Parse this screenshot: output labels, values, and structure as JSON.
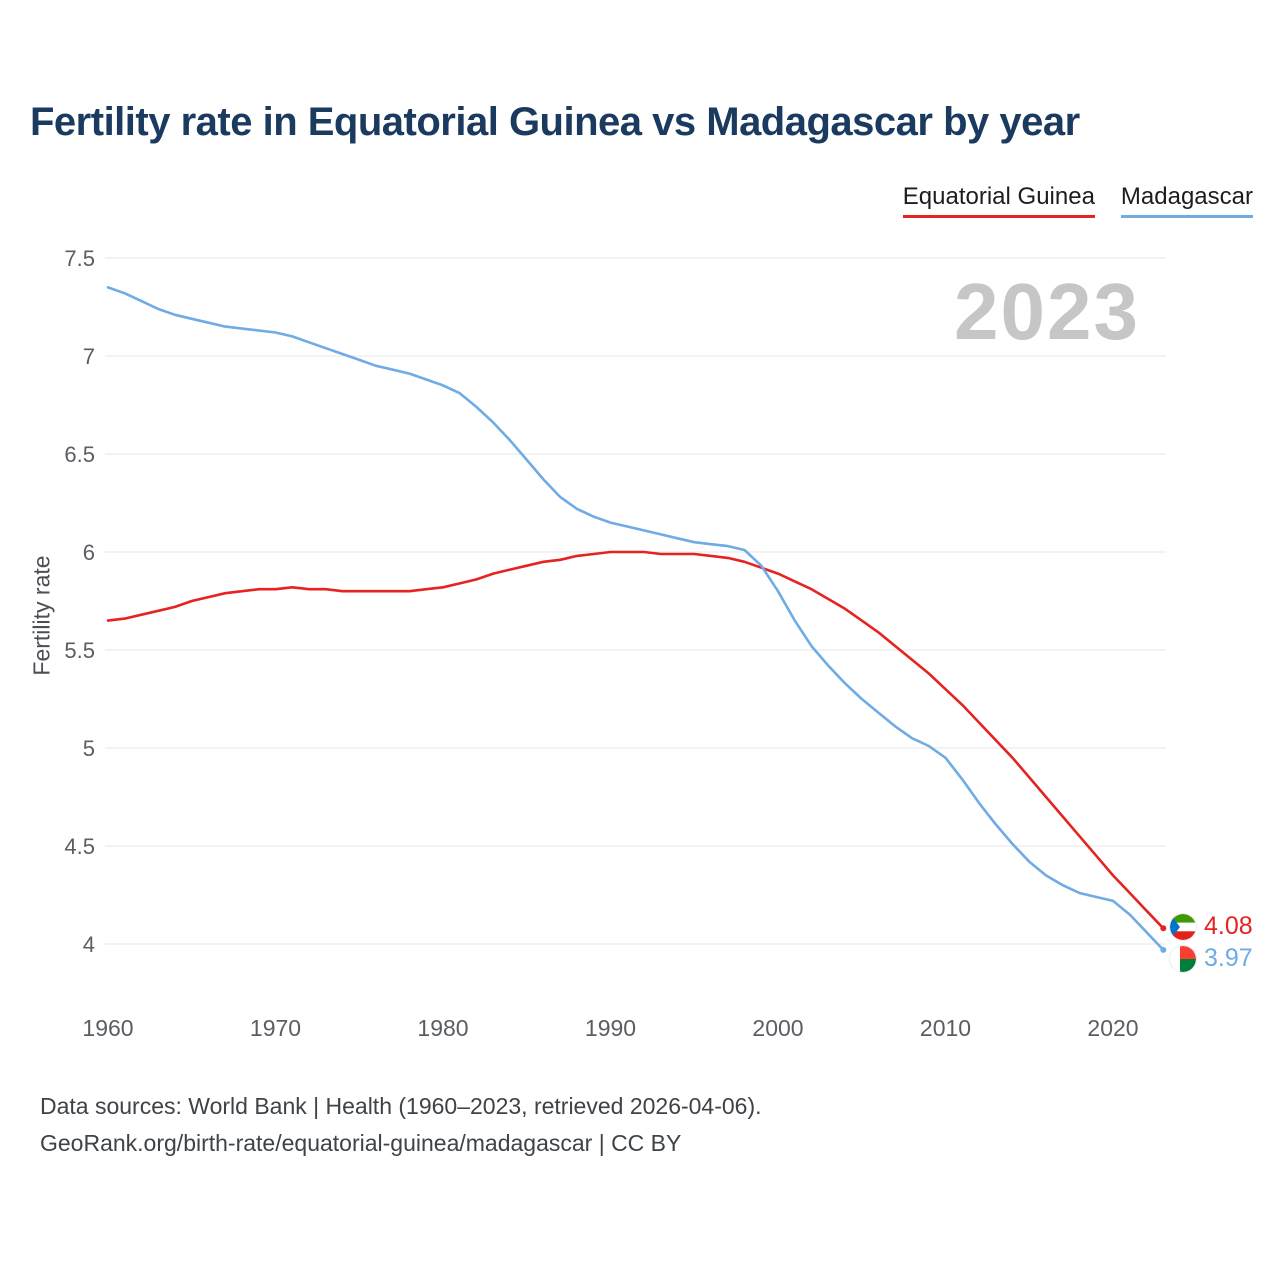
{
  "title": "Fertility rate in Equatorial Guinea vs Madagascar by year",
  "watermark": "2023",
  "ylabel": "Fertility rate",
  "legend": [
    {
      "label": "Equatorial Guinea",
      "color": "#e52320"
    },
    {
      "label": "Madagascar",
      "color": "#6fabe4"
    }
  ],
  "end_labels": [
    {
      "value": "4.08",
      "color": "#e52320",
      "flag": "equatorial-guinea-flag-icon"
    },
    {
      "value": "3.97",
      "color": "#6fabe4",
      "flag": "madagascar-flag-icon"
    }
  ],
  "footer": {
    "line1": "Data sources: World Bank | Health (1960–2023, retrieved 2026-04-06).",
    "line2": "GeoRank.org/birth-rate/equatorial-guinea/madagascar | CC BY"
  },
  "chart_data": {
    "type": "line",
    "title": "Fertility rate in Equatorial Guinea vs Madagascar by year",
    "xlabel": "",
    "ylabel": "Fertility rate",
    "grid": "horizontal",
    "legend_position": "top-right",
    "x_range": [
      1960,
      2023
    ],
    "ylim": [
      3.8,
      7.6
    ],
    "xticks": [
      1960,
      1970,
      1980,
      1990,
      2000,
      2010,
      2020
    ],
    "yticks": [
      7.5,
      7,
      6.5,
      6,
      5.5,
      5,
      4.5,
      4
    ],
    "x": [
      1960,
      1961,
      1962,
      1963,
      1964,
      1965,
      1966,
      1967,
      1968,
      1969,
      1970,
      1971,
      1972,
      1973,
      1974,
      1975,
      1976,
      1977,
      1978,
      1979,
      1980,
      1981,
      1982,
      1983,
      1984,
      1985,
      1986,
      1987,
      1988,
      1989,
      1990,
      1991,
      1992,
      1993,
      1994,
      1995,
      1996,
      1997,
      1998,
      1999,
      2000,
      2001,
      2002,
      2003,
      2004,
      2005,
      2006,
      2007,
      2008,
      2009,
      2010,
      2011,
      2012,
      2013,
      2014,
      2015,
      2016,
      2017,
      2018,
      2019,
      2020,
      2021,
      2022,
      2023
    ],
    "series": [
      {
        "name": "Equatorial Guinea",
        "color": "#e52320",
        "values": [
          5.65,
          5.66,
          5.68,
          5.7,
          5.72,
          5.75,
          5.77,
          5.79,
          5.8,
          5.81,
          5.81,
          5.82,
          5.81,
          5.81,
          5.8,
          5.8,
          5.8,
          5.8,
          5.8,
          5.81,
          5.82,
          5.84,
          5.86,
          5.89,
          5.91,
          5.93,
          5.95,
          5.96,
          5.98,
          5.99,
          6.0,
          6.0,
          6.0,
          5.99,
          5.99,
          5.99,
          5.98,
          5.97,
          5.95,
          5.92,
          5.89,
          5.85,
          5.81,
          5.76,
          5.71,
          5.65,
          5.59,
          5.52,
          5.45,
          5.38,
          5.3,
          5.22,
          5.13,
          5.04,
          4.95,
          4.85,
          4.75,
          4.65,
          4.55,
          4.45,
          4.35,
          4.26,
          4.17,
          4.08
        ]
      },
      {
        "name": "Madagascar",
        "color": "#6fabe4",
        "values": [
          7.35,
          7.32,
          7.28,
          7.24,
          7.21,
          7.19,
          7.17,
          7.15,
          7.14,
          7.13,
          7.12,
          7.1,
          7.07,
          7.04,
          7.01,
          6.98,
          6.95,
          6.93,
          6.91,
          6.88,
          6.85,
          6.81,
          6.74,
          6.66,
          6.57,
          6.47,
          6.37,
          6.28,
          6.22,
          6.18,
          6.15,
          6.13,
          6.11,
          6.09,
          6.07,
          6.05,
          6.04,
          6.03,
          6.01,
          5.93,
          5.8,
          5.65,
          5.52,
          5.42,
          5.33,
          5.25,
          5.18,
          5.11,
          5.05,
          5.01,
          4.95,
          4.84,
          4.72,
          4.61,
          4.51,
          4.42,
          4.35,
          4.3,
          4.26,
          4.24,
          4.22,
          4.15,
          4.06,
          3.97
        ]
      }
    ]
  }
}
